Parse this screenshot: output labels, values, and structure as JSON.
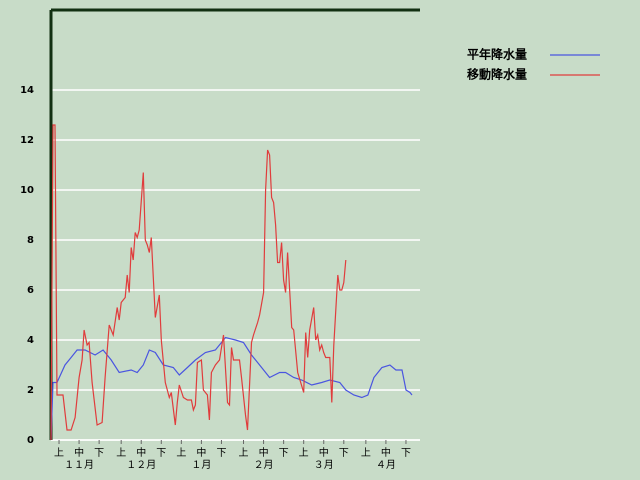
{
  "chart_data": {
    "type": "line",
    "ylim": [
      0,
      17.2
    ],
    "yticks": [
      0,
      2,
      4,
      6,
      8,
      10,
      12,
      14
    ],
    "grid": true,
    "xlim": [
      0,
      184
    ],
    "xticks": [
      {
        "value": 4,
        "label": "上"
      },
      {
        "value": 14,
        "label": "中"
      },
      {
        "value": 24,
        "label": "下"
      },
      {
        "value": 35,
        "label": "上"
      },
      {
        "value": 45,
        "label": "中"
      },
      {
        "value": 55,
        "label": "下"
      },
      {
        "value": 65,
        "label": "上"
      },
      {
        "value": 75,
        "label": "中"
      },
      {
        "value": 85,
        "label": "下"
      },
      {
        "value": 96,
        "label": "上"
      },
      {
        "value": 106,
        "label": "中"
      },
      {
        "value": 116,
        "label": "下"
      },
      {
        "value": 126,
        "label": "上"
      },
      {
        "value": 136,
        "label": "中"
      },
      {
        "value": 146,
        "label": "下"
      },
      {
        "value": 157,
        "label": "上"
      },
      {
        "value": 167,
        "label": "中"
      },
      {
        "value": 177,
        "label": "下"
      }
    ],
    "month_labels": [
      {
        "value": 14,
        "label": "１１月"
      },
      {
        "value": 45,
        "label": "１２月"
      },
      {
        "value": 75,
        "label": "１月"
      },
      {
        "value": 106,
        "label": "２月"
      },
      {
        "value": 136,
        "label": "３月"
      },
      {
        "value": 167,
        "label": "４月"
      }
    ],
    "series": [
      {
        "name": "平年降水量",
        "color": "#4a55e0",
        "x": [
          0,
          1,
          3,
          7,
          10,
          13,
          17,
          22,
          26,
          30,
          34,
          40,
          43,
          46,
          49,
          52,
          56,
          61,
          64,
          68,
          72,
          77,
          82,
          87,
          92,
          96,
          100,
          104,
          109,
          114,
          117,
          121,
          125,
          130,
          135,
          139,
          144,
          147,
          151,
          155,
          158,
          161,
          165,
          169,
          172,
          175,
          177,
          179,
          180
        ],
        "values": [
          0,
          2.3,
          2.3,
          3.0,
          3.3,
          3.6,
          3.6,
          3.4,
          3.6,
          3.2,
          2.7,
          2.8,
          2.7,
          3.0,
          3.6,
          3.5,
          3.0,
          2.9,
          2.6,
          2.9,
          3.2,
          3.5,
          3.6,
          4.1,
          4.0,
          3.9,
          3.4,
          3.0,
          2.5,
          2.7,
          2.7,
          2.5,
          2.4,
          2.2,
          2.3,
          2.4,
          2.3,
          2.0,
          1.8,
          1.7,
          1.8,
          2.5,
          2.9,
          3.0,
          2.8,
          2.8,
          2.0,
          1.9,
          1.8
        ]
      },
      {
        "name": "移動降水量",
        "color": "#e03c3c",
        "x": [
          0,
          1,
          2,
          3,
          6,
          8,
          10,
          12,
          14,
          15.5,
          16.5,
          18,
          19,
          20.5,
          23,
          25.5,
          27,
          29,
          31,
          33,
          34,
          35,
          37,
          38,
          39,
          40,
          41,
          42,
          43,
          44,
          46,
          47,
          48,
          49,
          50,
          51,
          52,
          54,
          55,
          57,
          59,
          60,
          62,
          63,
          64,
          66,
          68,
          70,
          71,
          72,
          73,
          75,
          76,
          78,
          79,
          80,
          82,
          84,
          86,
          88,
          89,
          90,
          91,
          94,
          95,
          97,
          98,
          100,
          101,
          103,
          104,
          106,
          107,
          108,
          109,
          110,
          111,
          112,
          113,
          114,
          115,
          116,
          117,
          118,
          120,
          121,
          123,
          126,
          127,
          128,
          129,
          131,
          132,
          133,
          134,
          135,
          136,
          137,
          139,
          140,
          141,
          142,
          143,
          144,
          145,
          146,
          147
        ],
        "values": [
          0,
          12.6,
          12.6,
          1.8,
          1.8,
          0.4,
          0.4,
          0.9,
          2.5,
          3.2,
          4.4,
          3.8,
          3.9,
          2.3,
          0.6,
          0.7,
          2.5,
          4.6,
          4.2,
          5.3,
          4.8,
          5.5,
          5.7,
          6.6,
          5.9,
          7.7,
          7.2,
          8.3,
          8.1,
          8.4,
          10.7,
          8.0,
          7.8,
          7.5,
          8.1,
          6.5,
          4.9,
          5.8,
          4.0,
          2.3,
          1.7,
          1.9,
          0.6,
          1.5,
          2.2,
          1.7,
          1.6,
          1.6,
          1.2,
          1.4,
          3.1,
          3.2,
          2.0,
          1.8,
          0.8,
          2.7,
          3.0,
          3.2,
          4.2,
          1.5,
          1.4,
          3.7,
          3.2,
          3.2,
          2.5,
          1.0,
          0.4,
          3.9,
          4.2,
          4.7,
          5.0,
          5.9,
          10.0,
          11.6,
          11.4,
          9.7,
          9.5,
          8.6,
          7.1,
          7.1,
          7.9,
          6.4,
          5.9,
          7.5,
          4.5,
          4.4,
          2.7,
          1.9,
          4.3,
          3.3,
          4.4,
          5.3,
          4.0,
          4.2,
          3.6,
          3.8,
          3.5,
          3.3,
          3.3,
          1.5,
          3.8,
          5.2,
          6.6,
          6.0,
          6.0,
          6.3,
          7.2
        ]
      }
    ]
  }
}
